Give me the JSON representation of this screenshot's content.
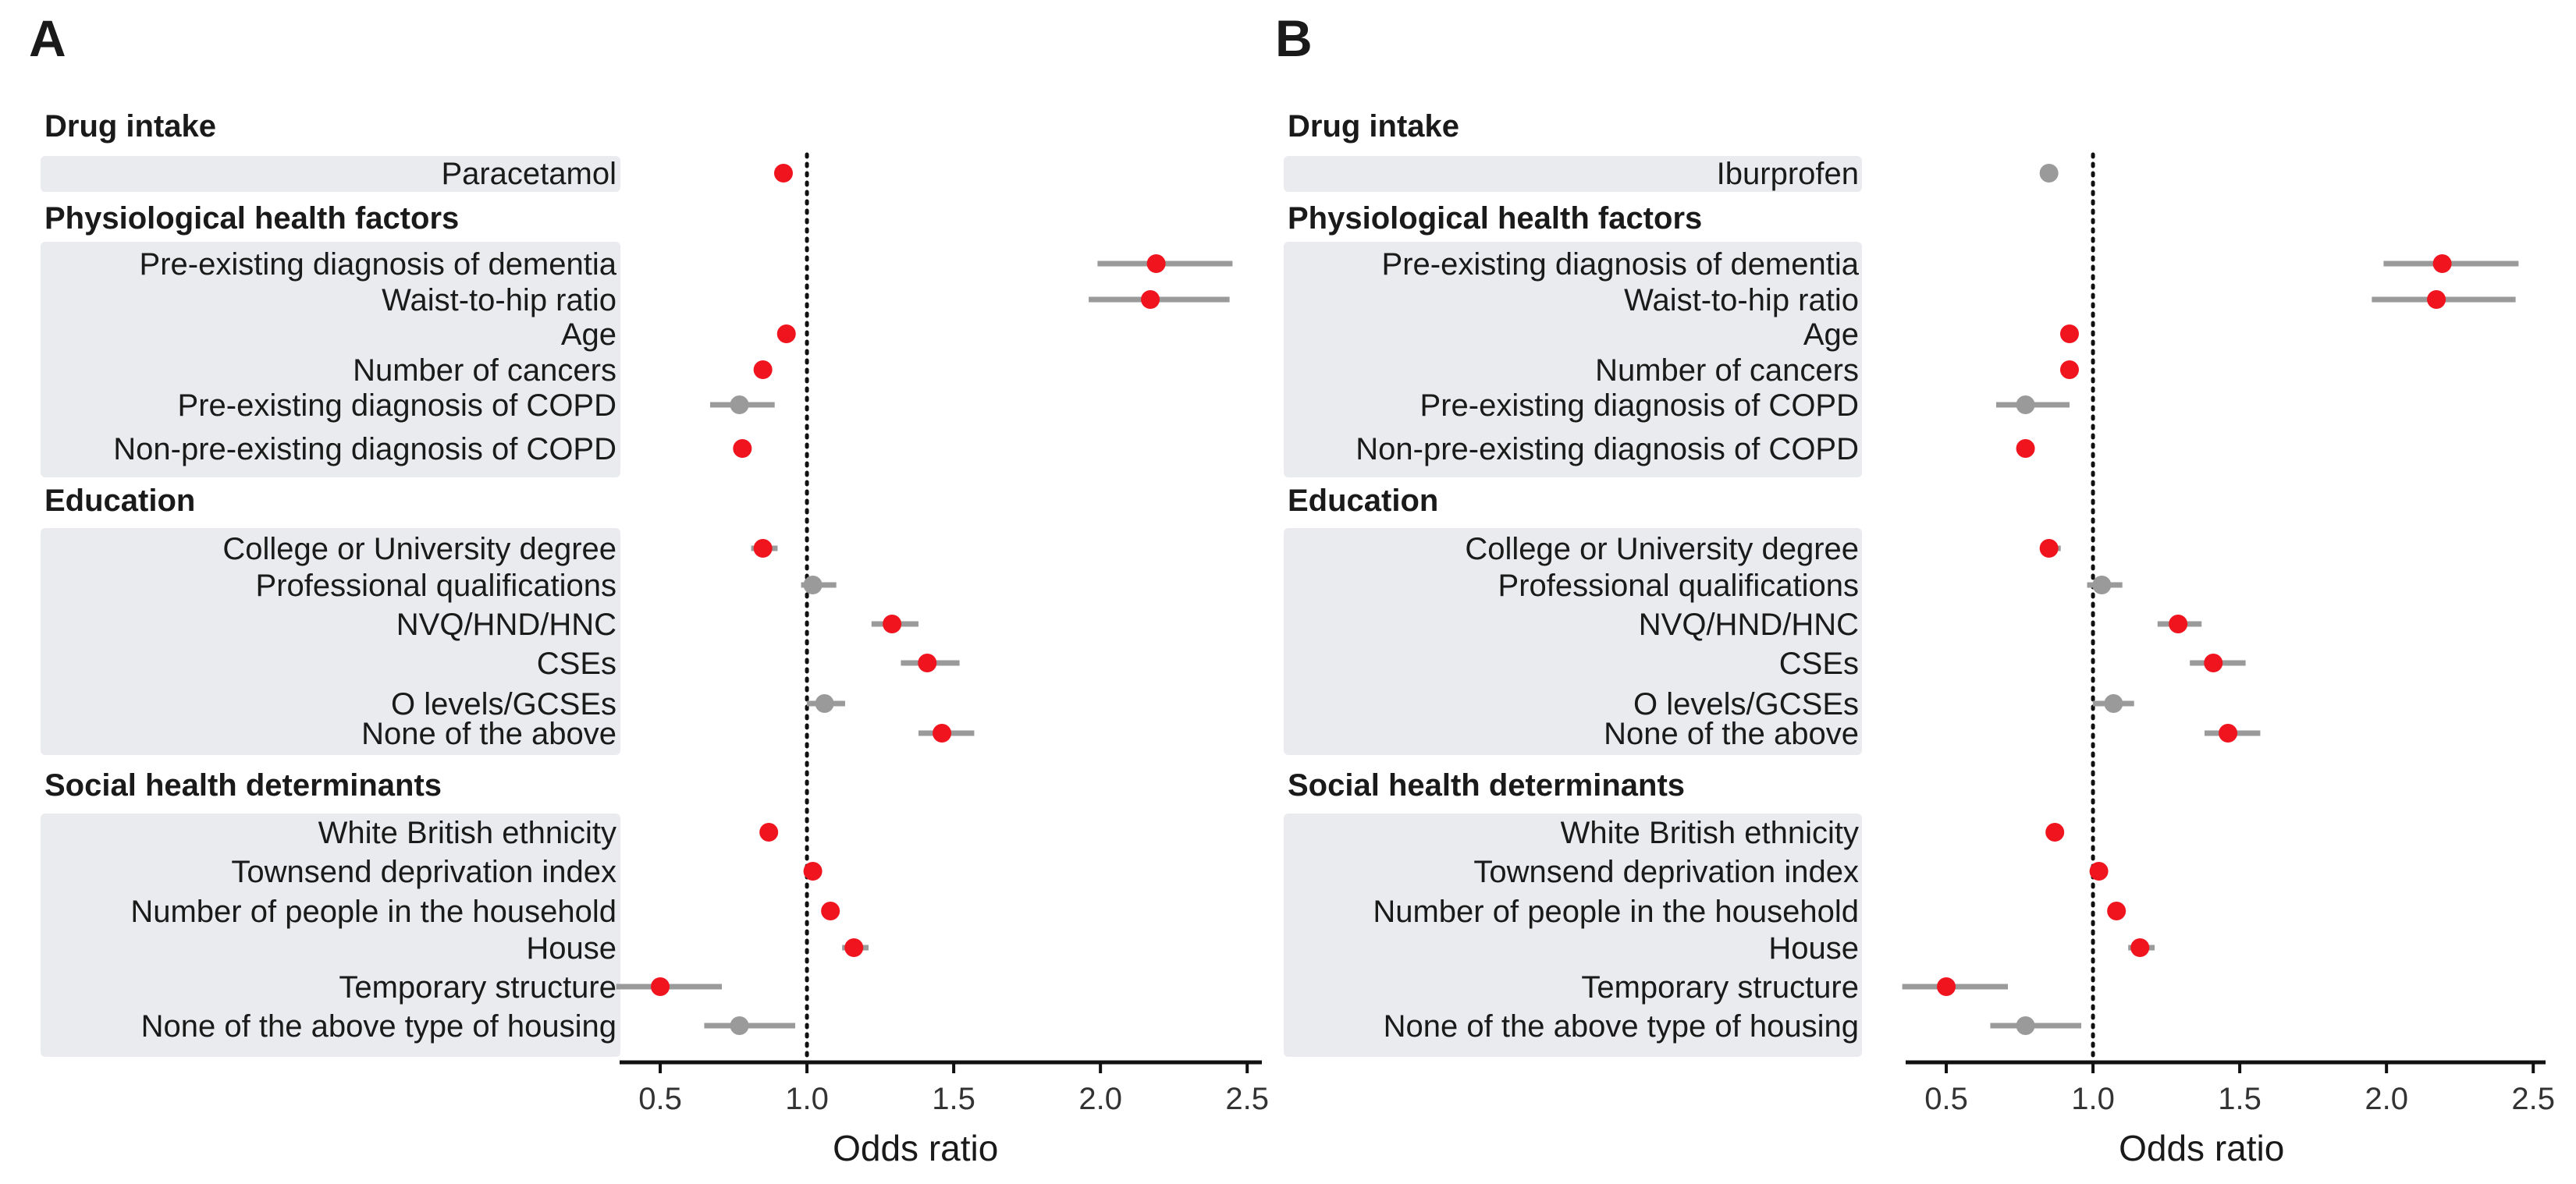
{
  "chart_data": [
    {
      "panel": "A",
      "type": "forest",
      "xlabel": "Odds ratio",
      "xlim": [
        0.25,
        2.55
      ],
      "xticks": [
        0.5,
        1.0,
        1.5,
        2.0,
        2.5
      ],
      "xtick_labels": [
        "0.5",
        "1.0",
        "1.5",
        "2.0",
        "2.5"
      ],
      "reference_line": 1.0,
      "groups": [
        {
          "title": "Drug intake",
          "rows": [
            {
              "label": "Paracetamol",
              "or": 0.92,
              "lo": 0.9,
              "hi": 0.94,
              "significant": true
            }
          ]
        },
        {
          "title": "Physiological health factors",
          "rows": [
            {
              "label": "Pre-existing diagnosis of dementia",
              "or": 2.19,
              "lo": 1.99,
              "hi": 2.45,
              "significant": true
            },
            {
              "label": "Waist-to-hip ratio",
              "or": 2.17,
              "lo": 1.96,
              "hi": 2.44,
              "significant": true
            },
            {
              "label": "Age",
              "or": 0.93,
              "lo": 0.92,
              "hi": 0.94,
              "significant": true
            },
            {
              "label": "Number of cancers",
              "or": 0.85,
              "lo": 0.83,
              "hi": 0.88,
              "significant": true
            },
            {
              "label": "Pre-existing diagnosis of COPD",
              "or": 0.77,
              "lo": 0.67,
              "hi": 0.89,
              "significant": false
            },
            {
              "label": "Non-pre-existing diagnosis of COPD",
              "or": 0.78,
              "lo": 0.76,
              "hi": 0.8,
              "significant": true
            }
          ]
        },
        {
          "title": "Education",
          "rows": [
            {
              "label": "College or University degree",
              "or": 0.85,
              "lo": 0.81,
              "hi": 0.9,
              "significant": true
            },
            {
              "label": "Professional qualifications",
              "or": 1.02,
              "lo": 0.98,
              "hi": 1.1,
              "significant": false
            },
            {
              "label": "NVQ/HND/HNC",
              "or": 1.29,
              "lo": 1.22,
              "hi": 1.38,
              "significant": true
            },
            {
              "label": "CSEs",
              "or": 1.41,
              "lo": 1.32,
              "hi": 1.52,
              "significant": true
            },
            {
              "label": "O levels/GCSEs",
              "or": 1.06,
              "lo": 1.0,
              "hi": 1.13,
              "significant": false
            },
            {
              "label": "None of the above",
              "or": 1.46,
              "lo": 1.38,
              "hi": 1.57,
              "significant": true
            }
          ]
        },
        {
          "title": "Social health determinants",
          "rows": [
            {
              "label": "White British ethnicity",
              "or": 0.87,
              "lo": 0.85,
              "hi": 0.89,
              "significant": true
            },
            {
              "label": "Townsend deprivation index",
              "or": 1.02,
              "lo": 1.01,
              "hi": 1.03,
              "significant": true
            },
            {
              "label": "Number of people in the household",
              "or": 1.08,
              "lo": 1.06,
              "hi": 1.1,
              "significant": true
            },
            {
              "label": "House",
              "or": 1.16,
              "lo": 1.12,
              "hi": 1.21,
              "significant": true
            },
            {
              "label": "Temporary structure",
              "or": 0.5,
              "lo": 0.35,
              "hi": 0.71,
              "significant": true
            },
            {
              "label": "None of the above type of housing",
              "or": 0.77,
              "lo": 0.65,
              "hi": 0.96,
              "significant": false
            }
          ]
        }
      ]
    },
    {
      "panel": "B",
      "type": "forest",
      "xlabel": "Odds ratio",
      "xlim": [
        0.25,
        2.55
      ],
      "xticks": [
        0.5,
        1.0,
        1.5,
        2.0,
        2.5
      ],
      "xtick_labels": [
        "0.5",
        "1.0",
        "1.5",
        "2.0",
        "2.5"
      ],
      "reference_line": 1.0,
      "groups": [
        {
          "title": "Drug intake",
          "rows": [
            {
              "label": "Iburprofen",
              "or": 0.85,
              "lo": 0.83,
              "hi": 0.88,
              "significant": false
            }
          ]
        },
        {
          "title": "Physiological health factors",
          "rows": [
            {
              "label": "Pre-existing diagnosis of dementia",
              "or": 2.19,
              "lo": 1.99,
              "hi": 2.45,
              "significant": true
            },
            {
              "label": "Waist-to-hip ratio",
              "or": 2.17,
              "lo": 1.95,
              "hi": 2.44,
              "significant": true
            },
            {
              "label": "Age",
              "or": 0.92,
              "lo": 0.91,
              "hi": 0.94,
              "significant": true
            },
            {
              "label": "Number of cancers",
              "or": 0.92,
              "lo": 0.9,
              "hi": 0.94,
              "significant": true
            },
            {
              "label": "Pre-existing diagnosis of COPD",
              "or": 0.77,
              "lo": 0.67,
              "hi": 0.92,
              "significant": false
            },
            {
              "label": "Non-pre-existing diagnosis of COPD",
              "or": 0.77,
              "lo": 0.75,
              "hi": 0.79,
              "significant": true
            }
          ]
        },
        {
          "title": "Education",
          "rows": [
            {
              "label": "College or University degree",
              "or": 0.85,
              "lo": 0.82,
              "hi": 0.89,
              "significant": true
            },
            {
              "label": "Professional qualifications",
              "or": 1.03,
              "lo": 0.98,
              "hi": 1.1,
              "significant": false
            },
            {
              "label": "NVQ/HND/HNC",
              "or": 1.29,
              "lo": 1.22,
              "hi": 1.37,
              "significant": true
            },
            {
              "label": "CSEs",
              "or": 1.41,
              "lo": 1.33,
              "hi": 1.52,
              "significant": true
            },
            {
              "label": "O levels/GCSEs",
              "or": 1.07,
              "lo": 1.0,
              "hi": 1.14,
              "significant": false
            },
            {
              "label": "None of the above",
              "or": 1.46,
              "lo": 1.38,
              "hi": 1.57,
              "significant": true
            }
          ]
        },
        {
          "title": "Social health determinants",
          "rows": [
            {
              "label": "White British ethnicity",
              "or": 0.87,
              "lo": 0.85,
              "hi": 0.89,
              "significant": true
            },
            {
              "label": "Townsend deprivation index",
              "or": 1.02,
              "lo": 1.01,
              "hi": 1.03,
              "significant": true
            },
            {
              "label": "Number of people in the household",
              "or": 1.08,
              "lo": 1.06,
              "hi": 1.1,
              "significant": true
            },
            {
              "label": "House",
              "or": 1.16,
              "lo": 1.12,
              "hi": 1.21,
              "significant": true
            },
            {
              "label": "Temporary structure",
              "or": 0.5,
              "lo": 0.35,
              "hi": 0.71,
              "significant": true
            },
            {
              "label": "None of the above type of housing",
              "or": 0.77,
              "lo": 0.65,
              "hi": 0.96,
              "significant": false
            }
          ]
        }
      ]
    }
  ],
  "colors": {
    "significant": "#f0141e",
    "non_significant": "#9a9a9a",
    "ci_line": "#9a9a9a",
    "group_band": "#e9ebee",
    "axis": "#111111",
    "reference_line": "#111111"
  }
}
